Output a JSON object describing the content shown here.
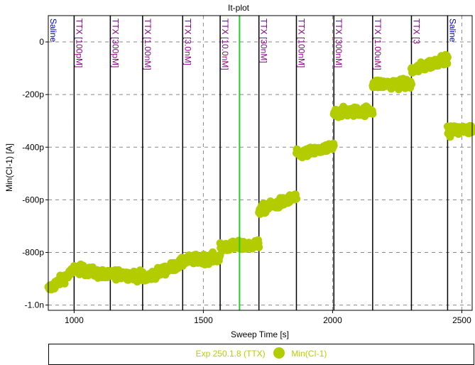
{
  "chart_data": {
    "type": "scatter",
    "title": "It-plot",
    "xlabel": "Sweep Time [s]",
    "ylabel": "Min(CI-1) [A]",
    "xlim": [
      900,
      2540
    ],
    "ylim": [
      -1.02e-09,
      1e-10
    ],
    "x_ticks": [
      1000,
      1500,
      2000,
      2500
    ],
    "x_tick_labels": [
      "1000",
      "1500",
      "2000",
      "2500"
    ],
    "y_ticks": [
      0,
      -2e-10,
      -4e-10,
      -6e-10,
      -8e-10,
      -1e-09
    ],
    "y_tick_labels": [
      "0",
      "-200p",
      "-400p",
      "-600p",
      "-800p",
      "-1.0n"
    ],
    "grid": true,
    "cursor_x": 1640,
    "cursor_color": "#22cc22",
    "point_color": "#b2cc00",
    "label_colors": {
      "saline": "#0000cc",
      "ttx": "#8a008a"
    },
    "markers": [
      {
        "x": 900,
        "label": "Saline",
        "kind": "saline"
      },
      {
        "x": 1000,
        "label": "TTX [100pM]",
        "kind": "ttx"
      },
      {
        "x": 1140,
        "label": "TTX [300pM]",
        "kind": "ttx"
      },
      {
        "x": 1265,
        "label": "TTX [1.00nM]",
        "kind": "ttx"
      },
      {
        "x": 1420,
        "label": "TTX [3.0nM]",
        "kind": "ttx"
      },
      {
        "x": 1565,
        "label": "TTX [10.0nM]",
        "kind": "ttx"
      },
      {
        "x": 1715,
        "label": "TTX [30nM]",
        "kind": "ttx"
      },
      {
        "x": 1860,
        "label": "TTX [100nM]",
        "kind": "ttx"
      },
      {
        "x": 2005,
        "label": "TTX [300nM]",
        "kind": "ttx"
      },
      {
        "x": 2155,
        "label": "TTX [1.00uM]",
        "kind": "ttx"
      },
      {
        "x": 2305,
        "label": "TTX [3",
        "kind": "ttx"
      },
      {
        "x": 2445,
        "label": "Saline",
        "kind": "saline"
      }
    ],
    "series": [
      {
        "name": "Min(CI-1)",
        "segments": [
          {
            "x0": 900,
            "x1": 1000,
            "y0": -9.4e-10,
            "y1": -8.7e-10
          },
          {
            "x0": 1000,
            "x1": 1140,
            "y0": -8.6e-10,
            "y1": -8.9e-10
          },
          {
            "x0": 1140,
            "x1": 1265,
            "y0": -8.8e-10,
            "y1": -8.9e-10
          },
          {
            "x0": 1265,
            "x1": 1420,
            "y0": -9e-10,
            "y1": -8.4e-10
          },
          {
            "x0": 1420,
            "x1": 1565,
            "y0": -8.3e-10,
            "y1": -8.2e-10
          },
          {
            "x0": 1565,
            "x1": 1715,
            "y0": -7.8e-10,
            "y1": -7.7e-10
          },
          {
            "x0": 1715,
            "x1": 1860,
            "y0": -6.4e-10,
            "y1": -5.9e-10
          },
          {
            "x0": 1860,
            "x1": 2005,
            "y0": -4.3e-10,
            "y1": -4e-10
          },
          {
            "x0": 2005,
            "x1": 2155,
            "y0": -2.7e-10,
            "y1": -2.6e-10
          },
          {
            "x0": 2155,
            "x1": 2305,
            "y0": -1.6e-10,
            "y1": -1.6e-10
          },
          {
            "x0": 2305,
            "x1": 2445,
            "y0": -1.1e-10,
            "y1": -6e-11
          },
          {
            "x0": 2445,
            "x1": 2540,
            "y0": -3.4e-10,
            "y1": -3.3e-10
          }
        ]
      }
    ],
    "legend": {
      "experiment": "Exp 250.1.8 (TTX)",
      "series_label": "Min(CI-1)"
    }
  }
}
